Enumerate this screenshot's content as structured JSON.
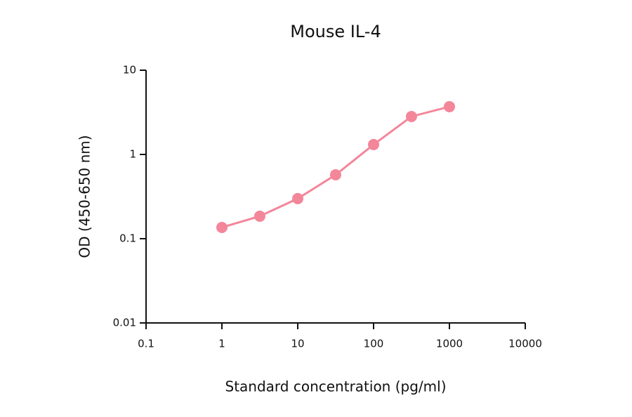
{
  "chart_data": {
    "type": "line",
    "title": "Mouse IL-4",
    "x_label": "Standard concentration (pg/ml)",
    "y_label": "OD (450-650 nm)",
    "log_x": true,
    "log_y": true,
    "grid": false,
    "series": [
      {
        "name": "Mouse IL-4",
        "color": "#f4869a",
        "x": [
          1,
          3.16,
          10,
          31.6,
          100,
          316,
          1000
        ],
        "values": [
          0.136,
          0.185,
          0.299,
          0.573,
          1.31,
          2.82,
          3.69
        ]
      }
    ],
    "xlim": [
      0.1,
      10000
    ],
    "xticks": [
      0.1,
      1,
      10,
      100,
      1000,
      10000
    ],
    "ylim": [
      0.01,
      10
    ],
    "yticks": [
      0.01,
      0.1,
      1,
      10
    ]
  }
}
